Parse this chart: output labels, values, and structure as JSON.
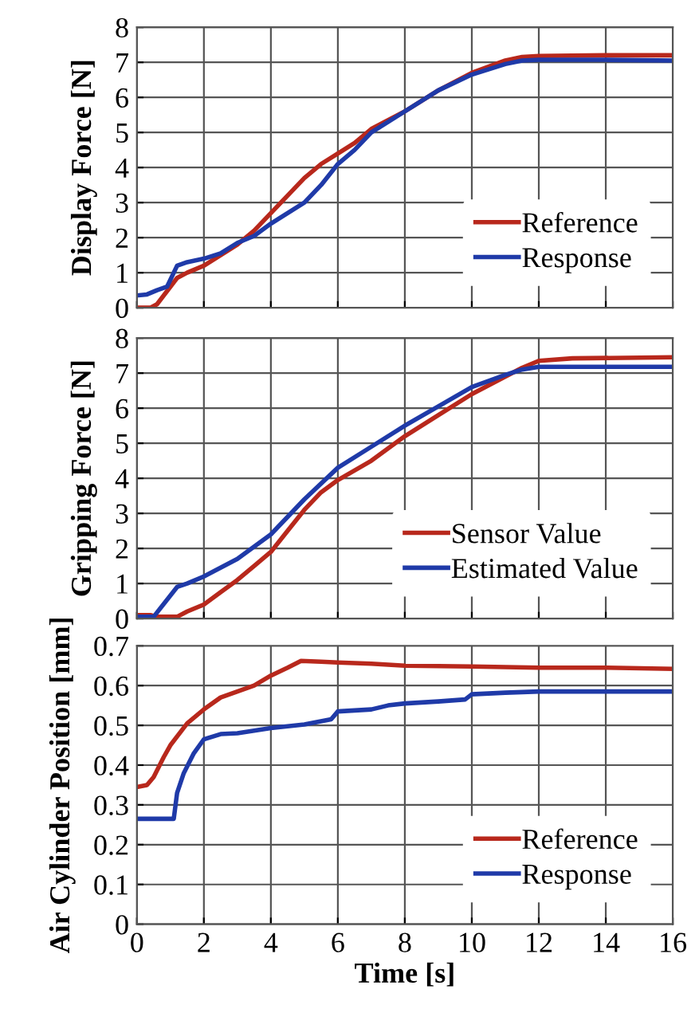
{
  "chart_data": [
    {
      "type": "line",
      "ylabel": "Display Force [N]",
      "xlim": [
        0,
        16
      ],
      "xticks": [
        0,
        2,
        4,
        6,
        8,
        10,
        12,
        14,
        16
      ],
      "ylim": [
        0,
        8
      ],
      "yticks": [
        0,
        1,
        2,
        3,
        4,
        5,
        6,
        7,
        8
      ],
      "grid": true,
      "legend": "bottom right",
      "tick_labels": "y",
      "series": [
        {
          "name": "Reference",
          "color": "#b8281c",
          "x": [
            0,
            0.4,
            0.6,
            1.2,
            1.5,
            2,
            2.5,
            3,
            3.5,
            4,
            4.5,
            5,
            5.5,
            6,
            6.5,
            7,
            8,
            9,
            10,
            11,
            11.5,
            12,
            14,
            16
          ],
          "values": [
            0,
            0,
            0.1,
            0.85,
            1.0,
            1.2,
            1.5,
            1.8,
            2.2,
            2.7,
            3.2,
            3.7,
            4.1,
            4.4,
            4.7,
            5.1,
            5.6,
            6.2,
            6.7,
            7.05,
            7.15,
            7.18,
            7.2,
            7.2
          ]
        },
        {
          "name": "Response",
          "color": "#1f3aa8",
          "x": [
            0,
            0.3,
            0.6,
            0.9,
            1.2,
            1.5,
            2,
            2.5,
            3,
            3.5,
            4,
            4.5,
            5,
            5.5,
            6,
            6.5,
            7,
            8,
            9,
            10,
            11,
            11.5,
            12,
            14,
            16
          ],
          "values": [
            0.35,
            0.38,
            0.5,
            0.6,
            1.2,
            1.3,
            1.4,
            1.55,
            1.85,
            2.05,
            2.4,
            2.7,
            3.0,
            3.5,
            4.1,
            4.5,
            5.0,
            5.6,
            6.2,
            6.65,
            6.95,
            7.05,
            7.07,
            7.07,
            7.05
          ]
        }
      ]
    },
    {
      "type": "line",
      "ylabel": "Gripping Force [N]",
      "xlim": [
        0,
        16
      ],
      "xticks": [
        0,
        2,
        4,
        6,
        8,
        10,
        12,
        14,
        16
      ],
      "ylim": [
        0,
        8
      ],
      "yticks": [
        0,
        1,
        2,
        3,
        4,
        5,
        6,
        7,
        8
      ],
      "grid": true,
      "legend": "bottom right",
      "tick_labels": "y",
      "series": [
        {
          "name": "Sensor Value",
          "color": "#b8281c",
          "x": [
            0,
            0.4,
            0.6,
            1.2,
            1.5,
            2,
            2.5,
            3,
            3.5,
            4,
            4.5,
            5,
            5.5,
            6,
            7,
            8,
            9,
            10,
            11,
            11.5,
            12,
            13,
            16
          ],
          "values": [
            0.1,
            0.1,
            0.05,
            0.05,
            0.2,
            0.4,
            0.75,
            1.1,
            1.5,
            1.9,
            2.5,
            3.1,
            3.6,
            3.95,
            4.5,
            5.2,
            5.8,
            6.4,
            6.9,
            7.15,
            7.35,
            7.42,
            7.45
          ]
        },
        {
          "name": "Estimated Value",
          "color": "#1f3aa8",
          "x": [
            0,
            0.5,
            1.2,
            1.5,
            2,
            3,
            4,
            5,
            6,
            7,
            8,
            9,
            10,
            11,
            11.5,
            12,
            16
          ],
          "values": [
            0.05,
            0.05,
            0.9,
            1.0,
            1.2,
            1.7,
            2.4,
            3.4,
            4.3,
            4.9,
            5.5,
            6.05,
            6.6,
            6.95,
            7.1,
            7.18,
            7.18
          ]
        }
      ]
    },
    {
      "type": "line",
      "xlabel": "Time [s]",
      "ylabel": "Air Cylinder Position [mm]",
      "xlim": [
        0,
        16
      ],
      "xticks": [
        0,
        2,
        4,
        6,
        8,
        10,
        12,
        14,
        16
      ],
      "ylim": [
        0,
        0.7
      ],
      "yticks": [
        0,
        0.1,
        0.2,
        0.3,
        0.4,
        0.5,
        0.6,
        0.7
      ],
      "grid": true,
      "legend": "bottom right",
      "series": [
        {
          "name": "Reference",
          "color": "#b8281c",
          "x": [
            0,
            0.3,
            0.5,
            0.8,
            1,
            1.5,
            2,
            2.5,
            3,
            3.5,
            4,
            4.5,
            4.9,
            5.5,
            6,
            7,
            8,
            10,
            12,
            14,
            16
          ],
          "values": [
            0.345,
            0.35,
            0.37,
            0.42,
            0.45,
            0.505,
            0.54,
            0.57,
            0.585,
            0.6,
            0.625,
            0.645,
            0.662,
            0.66,
            0.658,
            0.655,
            0.65,
            0.648,
            0.645,
            0.645,
            0.642
          ]
        },
        {
          "name": "Response",
          "color": "#1f3aa8",
          "x": [
            0,
            1.1,
            1.2,
            1.4,
            1.7,
            2,
            2.5,
            3,
            4,
            5,
            5.8,
            6,
            7,
            7.5,
            8,
            9,
            9.8,
            10,
            11,
            12,
            14,
            16
          ],
          "values": [
            0.265,
            0.265,
            0.33,
            0.38,
            0.43,
            0.465,
            0.478,
            0.48,
            0.493,
            0.502,
            0.515,
            0.535,
            0.54,
            0.55,
            0.555,
            0.56,
            0.565,
            0.578,
            0.582,
            0.585,
            0.585,
            0.585
          ]
        }
      ]
    }
  ]
}
